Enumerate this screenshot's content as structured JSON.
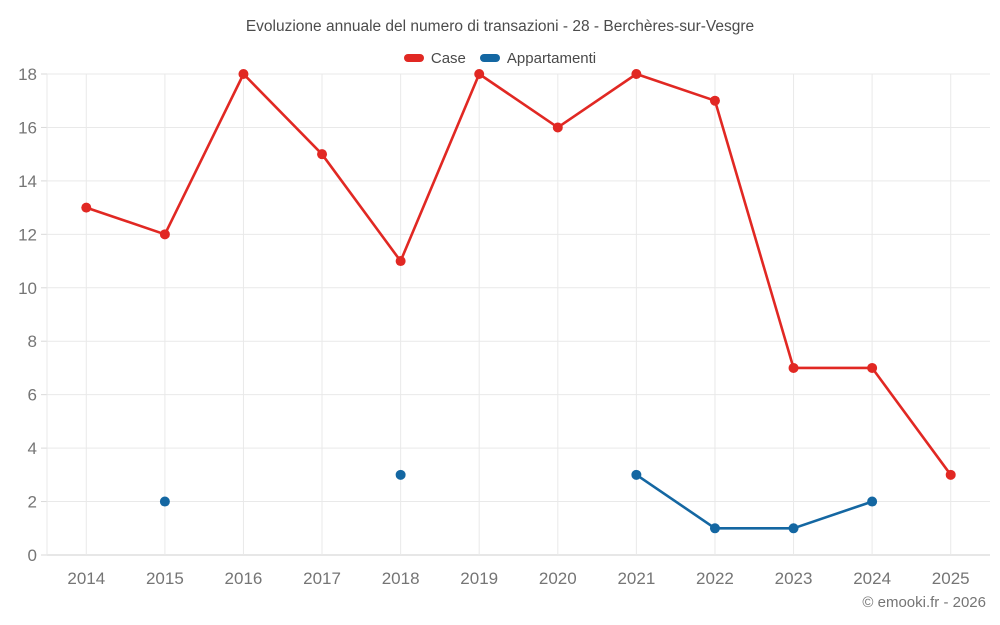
{
  "chart_data": {
    "type": "line",
    "title": "Evoluzione annuale del numero di transazioni - 28 - Berchères-sur-Vesgre",
    "categories": [
      "2014",
      "2015",
      "2016",
      "2017",
      "2018",
      "2019",
      "2020",
      "2021",
      "2022",
      "2023",
      "2024",
      "2025"
    ],
    "series": [
      {
        "name": "Case",
        "color": "#e12823",
        "values": [
          13,
          12,
          18,
          15,
          11,
          18,
          16,
          18,
          17,
          7,
          7,
          3
        ]
      },
      {
        "name": "Appartamenti",
        "color": "#1467a2",
        "values": [
          null,
          2,
          null,
          null,
          3,
          null,
          null,
          3,
          1,
          1,
          2,
          null
        ]
      }
    ],
    "xlabel": "",
    "ylabel": "",
    "ylim": [
      0,
      18
    ],
    "ytick_step": 2,
    "grid": true,
    "legend_position": "top",
    "axis_text_color": "#757575",
    "grid_color": "#e9e9e9",
    "zero_line_color": "#cfcfcf",
    "watermark": "© emooki.fr - 2026"
  }
}
